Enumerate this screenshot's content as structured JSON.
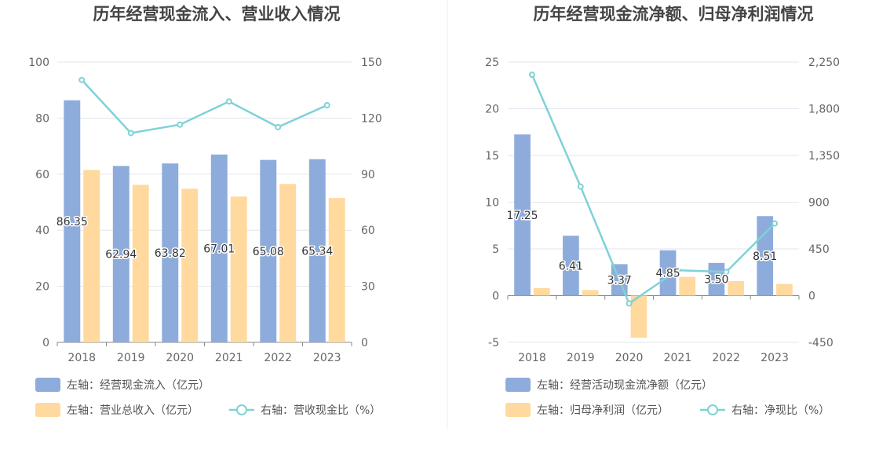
{
  "chart_data": [
    {
      "type": "bar",
      "title": "历年经营现金流入、营业收入情况",
      "categories": [
        "2018",
        "2019",
        "2020",
        "2021",
        "2022",
        "2023"
      ],
      "left_axis": {
        "ylim": [
          0,
          100
        ],
        "ticks": [
          "0",
          "20",
          "40",
          "60",
          "80",
          "100"
        ]
      },
      "right_axis": {
        "ylim": [
          0,
          150
        ],
        "ticks": [
          "0",
          "30",
          "60",
          "90",
          "120",
          "150"
        ]
      },
      "series": [
        {
          "name": "左轴：经营现金流入（亿元）",
          "kind": "bar",
          "axis": "left",
          "color": "#8eacdb",
          "values": [
            86.35,
            62.94,
            63.82,
            67.01,
            65.08,
            65.34
          ],
          "labels": [
            "86.35",
            "62.94",
            "63.82",
            "67.01",
            "65.08",
            "65.34"
          ]
        },
        {
          "name": "左轴：营业总收入（亿元）",
          "kind": "bar",
          "axis": "left",
          "color": "#ffd99e",
          "values": [
            61.5,
            56.2,
            54.8,
            52.0,
            56.5,
            51.5
          ]
        },
        {
          "name": "右轴：营收现金比（%）",
          "kind": "line",
          "axis": "right",
          "color": "#7fd2d6",
          "values": [
            140.4,
            112.0,
            116.5,
            128.9,
            115.2,
            126.9
          ]
        }
      ],
      "legend_position": "bottom-left",
      "grid": true
    },
    {
      "type": "bar",
      "title": "历年经营现金流净额、归母净利润情况",
      "categories": [
        "2018",
        "2019",
        "2020",
        "2021",
        "2022",
        "2023"
      ],
      "left_axis": {
        "ylim": [
          -5,
          25
        ],
        "ticks": [
          "-5",
          "0",
          "5",
          "10",
          "15",
          "20",
          "25"
        ]
      },
      "right_axis": {
        "ylim": [
          -450,
          2250
        ],
        "ticks": [
          "-450",
          "0",
          "450",
          "900",
          "1,350",
          "1,800",
          "2,250"
        ]
      },
      "series": [
        {
          "name": "左轴：经营活动现金流净额（亿元）",
          "kind": "bar",
          "axis": "left",
          "color": "#8eacdb",
          "values": [
            17.25,
            6.41,
            3.37,
            4.85,
            3.5,
            8.51
          ],
          "labels": [
            "17.25",
            "6.41",
            "3.37",
            "4.85",
            "3.50",
            "8.51"
          ]
        },
        {
          "name": "左轴：归母净利润（亿元）",
          "kind": "bar",
          "axis": "left",
          "color": "#ffd99e",
          "values": [
            0.8,
            0.6,
            -4.5,
            2.0,
            1.55,
            1.25
          ]
        },
        {
          "name": "右轴：净现比（%）",
          "kind": "line",
          "axis": "right",
          "color": "#7fd2d6",
          "values": [
            2128,
            1050,
            -75,
            245,
            228,
            695
          ]
        }
      ],
      "legend_position": "bottom-left",
      "grid": true
    }
  ]
}
